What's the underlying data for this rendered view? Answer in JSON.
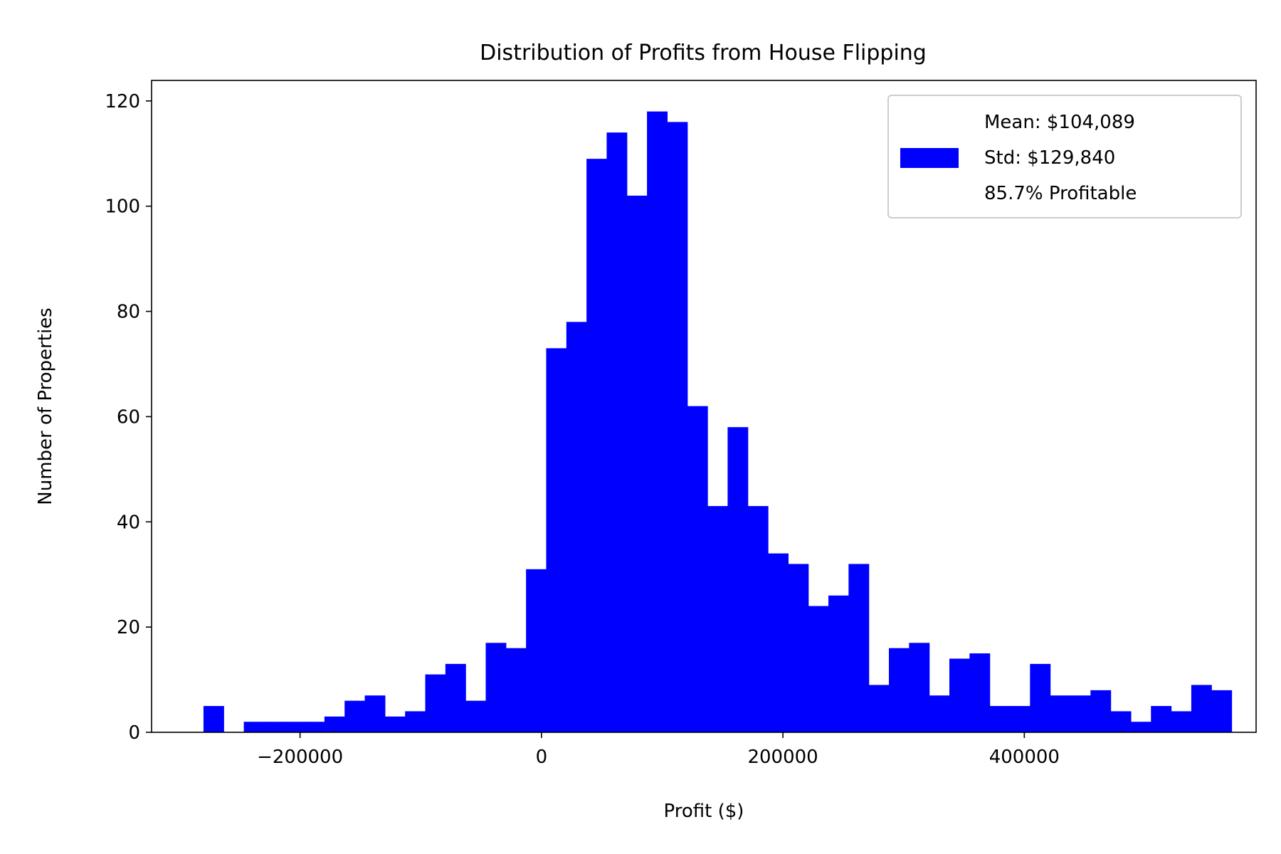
{
  "chart_data": {
    "type": "bar",
    "title": "Distribution of Profits from House Flipping",
    "xlabel": "Profit ($)",
    "ylabel": "Number of Properties",
    "xlim": [
      -323000,
      592000
    ],
    "ylim": [
      0,
      123.9
    ],
    "x_ticks": [
      -200000,
      0,
      200000,
      400000
    ],
    "x_tick_labels": [
      "−200000",
      "0",
      "200000",
      "400000"
    ],
    "y_ticks": [
      0,
      20,
      40,
      60,
      80,
      100,
      120
    ],
    "y_tick_labels": [
      "0",
      "20",
      "40",
      "60",
      "80",
      "100",
      "120"
    ],
    "bin_start": -280000,
    "bin_width": 16700,
    "values": [
      5,
      0,
      2,
      2,
      2,
      2,
      3,
      6,
      7,
      3,
      4,
      11,
      13,
      6,
      17,
      16,
      31,
      73,
      78,
      109,
      114,
      102,
      118,
      116,
      62,
      43,
      58,
      43,
      34,
      32,
      24,
      26,
      32,
      9,
      16,
      17,
      7,
      14,
      15,
      5,
      5,
      13,
      7,
      7,
      8,
      4,
      2,
      5,
      4,
      9,
      8
    ],
    "bar_color": "#0000ff",
    "grid": false,
    "legend_position": "top-right",
    "legend": {
      "lines": [
        "Mean: $104,089",
        "Std: $129,840",
        "85.7% Profitable"
      ],
      "color": "#0000ff"
    }
  }
}
